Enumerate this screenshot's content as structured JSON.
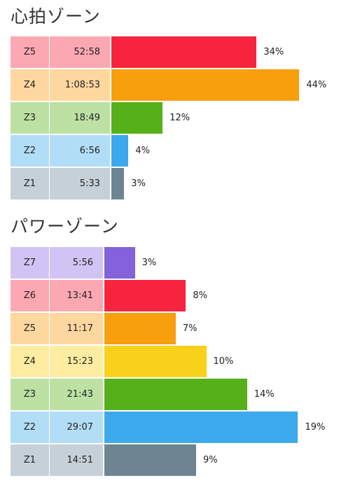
{
  "chart_data": [
    {
      "type": "bar",
      "title": "心拍ゾーン",
      "categories": [
        "Z5",
        "Z4",
        "Z3",
        "Z2",
        "Z1"
      ],
      "times": [
        "52:58",
        "1:08:53",
        "18:49",
        "6:56",
        "5:33"
      ],
      "values": [
        34,
        44,
        12,
        4,
        3
      ],
      "value_labels": [
        "34%",
        "44%",
        "12%",
        "4%",
        "3%"
      ],
      "bar_colors": [
        "#f72440",
        "#f79f0d",
        "#55b019",
        "#3ca9ec",
        "#6e8493"
      ],
      "cell_colors": [
        "#fba8b2",
        "#fed79f",
        "#bce1a3",
        "#b2ddf7",
        "#c6d0d8"
      ],
      "orientation": "horizontal",
      "legend": "none",
      "grid": false
    },
    {
      "type": "bar",
      "title": "パワーゾーン",
      "categories": [
        "Z7",
        "Z6",
        "Z5",
        "Z4",
        "Z3",
        "Z2",
        "Z1"
      ],
      "times": [
        "5:56",
        "13:41",
        "11:17",
        "15:23",
        "21:43",
        "29:07",
        "14:51"
      ],
      "values": [
        3,
        8,
        7,
        10,
        14,
        19,
        9
      ],
      "value_labels": [
        "3%",
        "8%",
        "7%",
        "10%",
        "14%",
        "19%",
        "9%"
      ],
      "bar_colors": [
        "#8462db",
        "#f72440",
        "#f79f0d",
        "#f9d11b",
        "#55b019",
        "#3ca9ec",
        "#6e8493"
      ],
      "cell_colors": [
        "#d1c4f4",
        "#fba8b2",
        "#fed79f",
        "#feeca0",
        "#bce1a3",
        "#b2ddf7",
        "#c6d0d8"
      ],
      "orientation": "horizontal",
      "legend": "none",
      "grid": false
    }
  ]
}
